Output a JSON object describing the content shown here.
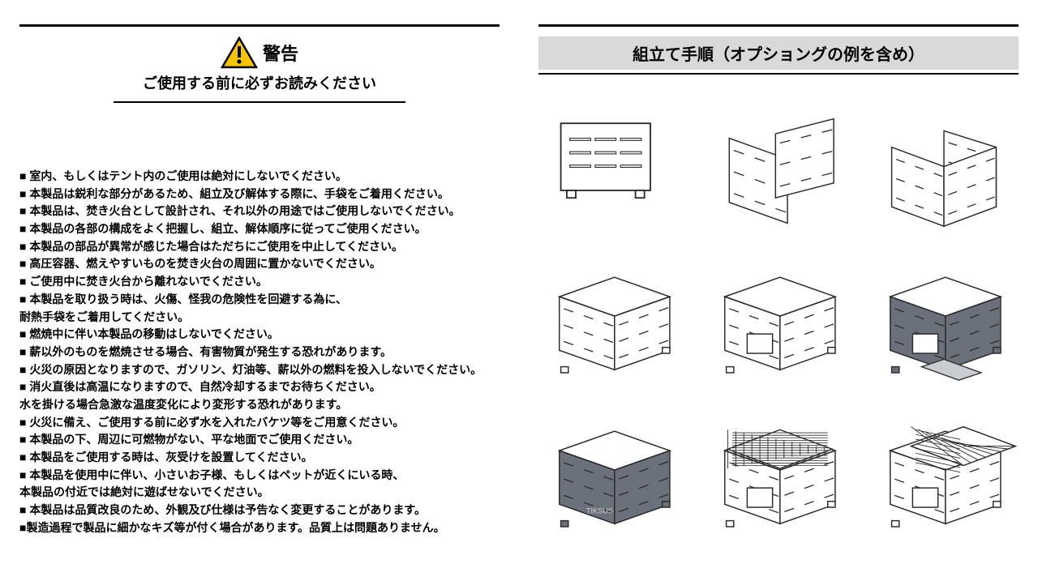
{
  "left": {
    "warning_label": "警告",
    "warning_sub": "ご使用する前に必ずお読みください",
    "bullets": [
      "■ 室内、もしくはテント内のご使用は絶対にしないでください。",
      "■ 本製品は鋭利な部分があるため、組立及び解体する際に、手袋をご着用ください。",
      "■ 本製品は、焚き火台として設計され、それ以外の用途ではご使用しないでください。",
      "■ 本製品の各部の構成をよく把握し、組立、解体順序に従ってご使用ください。",
      "■ 本製品の部品が異常が感じた場合はただちにご使用を中止してください。",
      "■ 高圧容器、燃えやすいものを焚き火台の周囲に置かないでください。",
      "■ ご使用中に焚き火台から離れないでください。",
      "■ 本製品を取り扱う時は、火傷、怪我の危険性を回避する為に、\n耐熱手袋をご着用してください。",
      "■ 燃焼中に伴い本製品の移動はしないでください。",
      "■ 薪以外のものを燃焼させる場合、有害物質が発生する恐れがあります。",
      "■ 火災の原因となりますので、ガソリン、灯油等、薪以外の燃料を投入しないでください。",
      "■ 消火直後は高温になりますので、自然冷却するまでお待ちください。\n水を掛ける場合急激な温度変化により変形する恐れがあります。",
      "■ 火災に備え、ご使用する前に必ず水を入れたバケツ等をご用意ください。",
      "■ 本製品の下、周辺に可燃物がない、平な地面でご使用ください。",
      "■ 本製品をご使用する時は、灰受けを設置してください。",
      "■ 本製品を使用中に伴い、小さいお子様、もしくはペットが近くにいる時、\n本製品の付近では絶対に遊ばせないでください。",
      "■ 本製品は品質改良のため、外観及び仕様は予告なく変更することがあります。",
      "■製造過程で製品に細かなキズ等が付く場合があります。品質上は問題ありません。"
    ]
  },
  "right": {
    "title": "組立て手順（オプショングの例を含め）",
    "steps": [
      {
        "kind": "panel",
        "fill": "#ffffff",
        "stroke": "#2b2b2b"
      },
      {
        "kind": "two_panels",
        "fill": "#ffffff",
        "stroke": "#2b2b2b"
      },
      {
        "kind": "three_panels",
        "fill": "#ffffff",
        "stroke": "#2b2b2b"
      },
      {
        "kind": "box_open",
        "fill": "#ffffff",
        "stroke": "#2b2b2b"
      },
      {
        "kind": "box_open_front",
        "fill": "#ffffff",
        "stroke": "#2b2b2b"
      },
      {
        "kind": "box_dark_tray",
        "fill": "#6b717a",
        "stroke": "#2b2b2b",
        "tray": "#c9cdd2"
      },
      {
        "kind": "box_dark",
        "fill": "#6b717a",
        "stroke": "#2b2b2b",
        "label": "TIKSUS"
      },
      {
        "kind": "box_grill",
        "fill": "#ffffff",
        "stroke": "#2b2b2b",
        "grill": "#2b2b2b"
      },
      {
        "kind": "box_grill_half",
        "fill": "#ffffff",
        "stroke": "#2b2b2b",
        "grill": "#2b2b2b"
      }
    ]
  },
  "colors": {
    "rule": "#000000",
    "title_bg": "#d9d9d9",
    "warn_yellow": "#f6c400",
    "warn_border": "#000000"
  }
}
